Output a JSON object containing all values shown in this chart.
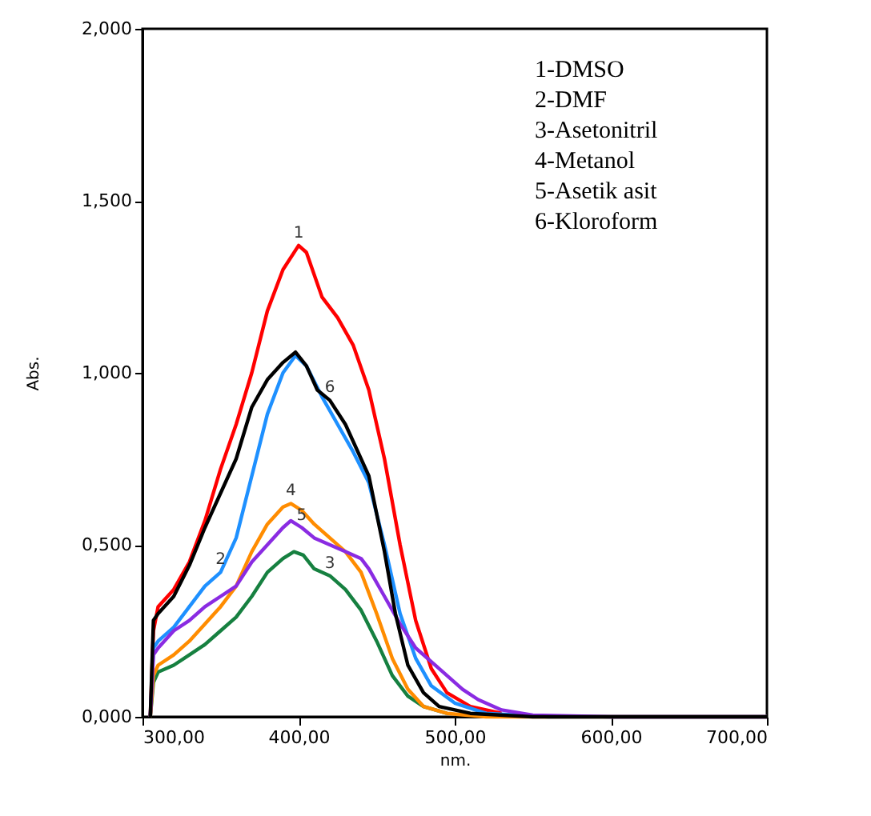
{
  "chart_data": {
    "type": "line",
    "xlabel": "nm.",
    "ylabel": "Abs.",
    "xlim": [
      300,
      700
    ],
    "ylim": [
      0,
      2
    ],
    "xticks": [
      {
        "value": 300,
        "label": "300,00"
      },
      {
        "value": 400,
        "label": "400,00"
      },
      {
        "value": 500,
        "label": "500,00"
      },
      {
        "value": 600,
        "label": "600,00"
      },
      {
        "value": 700,
        "label": "700,00"
      }
    ],
    "yticks": [
      {
        "value": 0,
        "label": "0,000"
      },
      {
        "value": 0.5,
        "label": "0,500"
      },
      {
        "value": 1,
        "label": "1,000"
      },
      {
        "value": 1.5,
        "label": "1,500"
      },
      {
        "value": 2,
        "label": "2,000"
      }
    ],
    "grid": false,
    "legend": false,
    "line_style": "solid",
    "marker": "none",
    "series": [
      {
        "color": "#ff0000",
        "x": [
          305,
          307,
          310,
          320,
          330,
          340,
          350,
          360,
          370,
          380,
          390,
          400,
          405,
          415,
          425,
          435,
          445,
          455,
          465,
          475,
          485,
          495,
          510,
          530
        ],
        "values": [
          0,
          0.25,
          0.32,
          0.37,
          0.45,
          0.57,
          0.72,
          0.85,
          1.0,
          1.18,
          1.3,
          1.37,
          1.35,
          1.22,
          1.16,
          1.08,
          0.95,
          0.75,
          0.5,
          0.28,
          0.14,
          0.07,
          0.03,
          0.01
        ]
      },
      {
        "color": "#1e90ff",
        "x": [
          305,
          307,
          310,
          320,
          330,
          340,
          350,
          360,
          370,
          380,
          390,
          398,
          405,
          415,
          425,
          435,
          445,
          455,
          465,
          475,
          485,
          500,
          520,
          560,
          700
        ],
        "values": [
          0,
          0.2,
          0.22,
          0.26,
          0.32,
          0.38,
          0.42,
          0.52,
          0.7,
          0.88,
          1.0,
          1.05,
          1.02,
          0.93,
          0.85,
          0.77,
          0.68,
          0.5,
          0.3,
          0.17,
          0.09,
          0.04,
          0.01,
          0,
          0
        ]
      },
      {
        "color": "#168040",
        "x": [
          305,
          307,
          310,
          320,
          330,
          340,
          350,
          360,
          370,
          380,
          390,
          397,
          403,
          410,
          420,
          430,
          440,
          450,
          460,
          470,
          480,
          495
        ],
        "values": [
          0,
          0.1,
          0.13,
          0.15,
          0.18,
          0.21,
          0.25,
          0.29,
          0.35,
          0.42,
          0.46,
          0.48,
          0.47,
          0.43,
          0.41,
          0.37,
          0.31,
          0.22,
          0.12,
          0.06,
          0.03,
          0.01
        ]
      },
      {
        "color": "#ff8c00",
        "x": [
          305,
          307,
          310,
          320,
          330,
          340,
          350,
          360,
          370,
          380,
          390,
          395,
          402,
          410,
          420,
          430,
          440,
          450,
          460,
          470,
          480,
          495,
          520,
          700
        ],
        "values": [
          0,
          0.12,
          0.15,
          0.18,
          0.22,
          0.27,
          0.32,
          0.38,
          0.48,
          0.56,
          0.61,
          0.62,
          0.6,
          0.56,
          0.52,
          0.48,
          0.42,
          0.3,
          0.17,
          0.08,
          0.03,
          0.01,
          0,
          0
        ]
      },
      {
        "color": "#8a2be2",
        "x": [
          305,
          307,
          310,
          320,
          330,
          340,
          350,
          360,
          370,
          380,
          390,
          395,
          402,
          410,
          420,
          430,
          440,
          445,
          455,
          465,
          475,
          485,
          495,
          505,
          515,
          530,
          550,
          600,
          700
        ],
        "values": [
          0,
          0.18,
          0.2,
          0.25,
          0.28,
          0.32,
          0.35,
          0.38,
          0.45,
          0.5,
          0.55,
          0.57,
          0.55,
          0.52,
          0.5,
          0.48,
          0.46,
          0.43,
          0.35,
          0.27,
          0.2,
          0.16,
          0.12,
          0.08,
          0.05,
          0.02,
          0.005,
          0,
          0
        ]
      },
      {
        "color": "#000000",
        "x": [
          305,
          307,
          310,
          320,
          330,
          340,
          350,
          360,
          370,
          380,
          390,
          398,
          405,
          412,
          420,
          430,
          440,
          445,
          455,
          462,
          470,
          480,
          490,
          510,
          550,
          700
        ],
        "values": [
          0,
          0.28,
          0.3,
          0.35,
          0.44,
          0.55,
          0.65,
          0.75,
          0.9,
          0.98,
          1.03,
          1.06,
          1.02,
          0.95,
          0.92,
          0.85,
          0.75,
          0.7,
          0.48,
          0.3,
          0.15,
          0.07,
          0.03,
          0.01,
          0,
          0
        ]
      }
    ],
    "annotations": [
      {
        "text": "1",
        "x": 400,
        "y": 1.37
      },
      {
        "text": "2",
        "x": 350,
        "y": 0.42
      },
      {
        "text": "3",
        "x": 420,
        "y": 0.41
      },
      {
        "text": "4",
        "x": 395,
        "y": 0.62
      },
      {
        "text": "5",
        "x": 402,
        "y": 0.55
      },
      {
        "text": "6",
        "x": 420,
        "y": 0.92
      },
      "1-DMSO",
      "2-DMF",
      "3-Asetonitril",
      "4-Metanol",
      "5-Asetik asit",
      "6-Kloroform"
    ]
  }
}
